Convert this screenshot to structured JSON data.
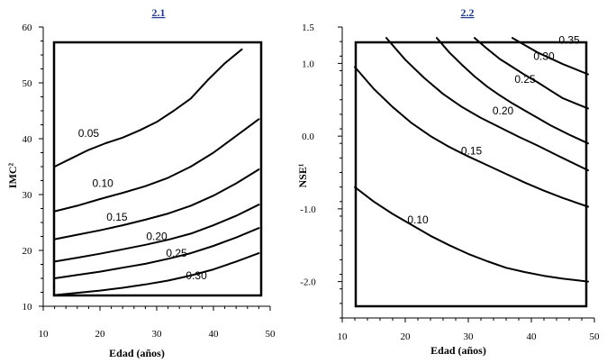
{
  "chart_data": [
    {
      "type": "line",
      "panel": "2.1",
      "title": "2.1",
      "xlabel": "Edad (años)",
      "ylabel": "IMC²",
      "xlim": [
        10,
        50
      ],
      "ylim": [
        10,
        60
      ],
      "xticks": [
        10,
        20,
        30,
        40,
        50
      ],
      "yticks": [
        10,
        20,
        30,
        40,
        50,
        60
      ],
      "series": [
        {
          "name": "0.05",
          "x": [
            12,
            15,
            18,
            21,
            24,
            27,
            30,
            33,
            36,
            39,
            42,
            45
          ],
          "y": [
            35.0,
            36.5,
            38.0,
            39.2,
            40.2,
            41.5,
            43.0,
            45.0,
            47.2,
            50.5,
            53.5,
            56.0
          ]
        },
        {
          "name": "0.10",
          "x": [
            12,
            16,
            20,
            24,
            28,
            32,
            36,
            40,
            44,
            48
          ],
          "y": [
            27.0,
            28.0,
            29.2,
            30.3,
            31.5,
            33.0,
            35.0,
            37.5,
            40.5,
            43.5
          ]
        },
        {
          "name": "0.15",
          "x": [
            12,
            16,
            20,
            24,
            28,
            32,
            36,
            40,
            44,
            48
          ],
          "y": [
            22.0,
            22.8,
            23.6,
            24.5,
            25.5,
            26.6,
            28.0,
            29.8,
            32.0,
            34.5
          ]
        },
        {
          "name": "0.20",
          "x": [
            12,
            16,
            20,
            24,
            28,
            32,
            36,
            40,
            44,
            48
          ],
          "y": [
            18.0,
            18.7,
            19.4,
            20.2,
            21.0,
            21.9,
            23.0,
            24.5,
            26.2,
            28.2
          ]
        },
        {
          "name": "0.25",
          "x": [
            12,
            16,
            20,
            24,
            28,
            32,
            36,
            40,
            44,
            48
          ],
          "y": [
            15.0,
            15.6,
            16.2,
            16.9,
            17.6,
            18.5,
            19.5,
            20.8,
            22.3,
            24.0
          ]
        },
        {
          "name": "0.30",
          "x": [
            12,
            16,
            20,
            24,
            28,
            32,
            36,
            40,
            44,
            48
          ],
          "y": [
            12.0,
            12.4,
            12.8,
            13.3,
            13.9,
            14.6,
            15.5,
            16.6,
            18.0,
            19.5
          ]
        }
      ],
      "labels": [
        {
          "text": "0.05",
          "x": 18,
          "y": 41
        },
        {
          "text": "0.10",
          "x": 20.5,
          "y": 32
        },
        {
          "text": "0.15",
          "x": 23,
          "y": 26
        },
        {
          "text": "0.20",
          "x": 30,
          "y": 22.5
        },
        {
          "text": "0.25",
          "x": 33.5,
          "y": 19.5
        },
        {
          "text": "0.30",
          "x": 37,
          "y": 15.5
        }
      ]
    },
    {
      "type": "line",
      "panel": "2.2",
      "title": "2.2",
      "xlabel": "Edad (años)",
      "ylabel": "NSE¹",
      "xlim": [
        10,
        50
      ],
      "ylim": [
        -2.5,
        1.5
      ],
      "xticks": [
        10,
        20,
        30,
        40,
        50
      ],
      "yticks": [
        1.5,
        1.0,
        0.0,
        -1.0,
        -2.0
      ],
      "ytick_labels": [
        "1.5",
        "1.0",
        "0.0",
        "-1.0",
        "-2.0"
      ],
      "series": [
        {
          "name": "0.10",
          "x": [
            12,
            15,
            18,
            21,
            24,
            27,
            30,
            33,
            36,
            39,
            42,
            45,
            49
          ],
          "y": [
            -0.7,
            -0.9,
            -1.07,
            -1.22,
            -1.37,
            -1.5,
            -1.62,
            -1.72,
            -1.81,
            -1.87,
            -1.92,
            -1.96,
            -2.0
          ]
        },
        {
          "name": "0.15",
          "x": [
            12,
            15,
            18,
            21,
            24,
            27,
            30,
            33,
            36,
            39,
            42,
            45,
            49
          ],
          "y": [
            0.95,
            0.65,
            0.4,
            0.18,
            0.0,
            -0.15,
            -0.28,
            -0.4,
            -0.52,
            -0.64,
            -0.75,
            -0.85,
            -0.97
          ]
        },
        {
          "name": "0.20",
          "x": [
            17,
            20,
            23,
            26,
            29,
            32,
            35,
            38,
            41,
            44,
            49
          ],
          "y": [
            1.35,
            1.05,
            0.8,
            0.58,
            0.4,
            0.25,
            0.12,
            -0.01,
            -0.13,
            -0.26,
            -0.47
          ]
        },
        {
          "name": "0.25",
          "x": [
            25,
            27,
            29,
            31,
            33,
            35,
            37,
            39,
            41,
            43,
            46,
            49
          ],
          "y": [
            1.35,
            1.15,
            0.98,
            0.82,
            0.68,
            0.56,
            0.45,
            0.35,
            0.25,
            0.15,
            0.02,
            -0.1
          ]
        },
        {
          "name": "0.30",
          "x": [
            31,
            33,
            35,
            37,
            39,
            41,
            43,
            45,
            47,
            49
          ],
          "y": [
            1.35,
            1.2,
            1.06,
            0.95,
            0.84,
            0.74,
            0.63,
            0.52,
            0.45,
            0.38
          ]
        },
        {
          "name": "0.35",
          "x": [
            37,
            39,
            41,
            43,
            45,
            47,
            49
          ],
          "y": [
            1.35,
            1.25,
            1.15,
            1.07,
            0.99,
            0.92,
            0.85
          ]
        }
      ],
      "labels": [
        {
          "text": "0.10",
          "x": 22,
          "y": -1.15
        },
        {
          "text": "0.15",
          "x": 30.5,
          "y": -0.2
        },
        {
          "text": "0.20",
          "x": 35.5,
          "y": 0.35
        },
        {
          "text": "0.25",
          "x": 39,
          "y": 0.78
        },
        {
          "text": "0.30",
          "x": 42,
          "y": 1.1
        },
        {
          "text": "0.35",
          "x": 46,
          "y": 1.32
        }
      ]
    }
  ]
}
